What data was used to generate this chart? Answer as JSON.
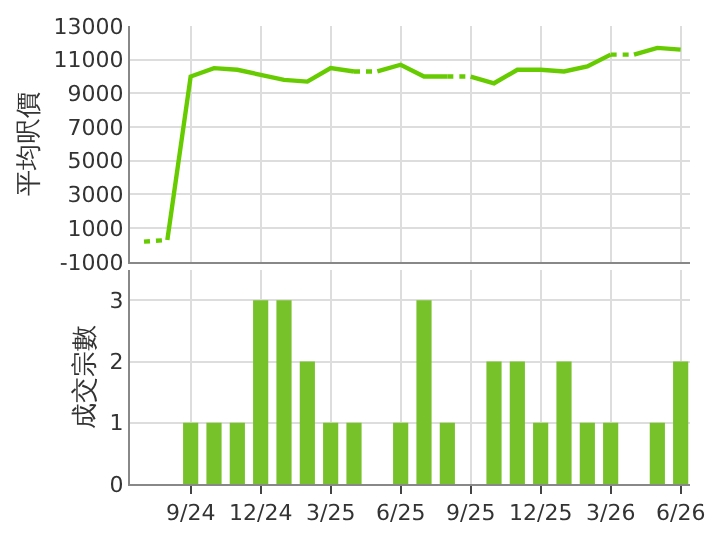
{
  "chart_data": [
    {
      "type": "line",
      "ylabel": "平均呎價",
      "categories": [
        null,
        null,
        null,
        null,
        null,
        null,
        null,
        null,
        null,
        null,
        null,
        null,
        null,
        null,
        null,
        null,
        null,
        null,
        null,
        null,
        null,
        null,
        null,
        null
      ],
      "series": [
        {
          "color": "#66cc00",
          "line_style": "solid",
          "values": [
            null,
            300,
            10000,
            10500,
            10400,
            10100,
            9800,
            9700,
            10500,
            10300,
            null,
            null,
            null,
            null,
            null,
            null,
            null,
            null,
            null,
            null,
            null,
            null,
            null,
            null
          ]
        },
        {
          "color": "#66cc00",
          "line_style": "solid",
          "values": [
            null,
            null,
            null,
            null,
            null,
            null,
            null,
            null,
            null,
            null,
            10300,
            10700,
            10000,
            10000,
            null,
            null,
            null,
            null,
            null,
            null,
            null,
            null,
            null,
            null
          ]
        },
        {
          "color": "#66cc00",
          "line_style": "solid",
          "values": [
            null,
            null,
            null,
            null,
            null,
            null,
            null,
            null,
            null,
            null,
            null,
            null,
            null,
            null,
            10000,
            9600,
            10400,
            10400,
            10300,
            10600,
            11300,
            null,
            null,
            null
          ]
        },
        {
          "color": "#66cc00",
          "line_style": "solid",
          "values": [
            null,
            null,
            null,
            null,
            null,
            null,
            null,
            null,
            null,
            null,
            null,
            null,
            null,
            null,
            null,
            null,
            null,
            null,
            null,
            null,
            null,
            11300,
            11700,
            11600
          ]
        },
        {
          "color": "#66cc00",
          "line_style": "dotted",
          "values": [
            200,
            300,
            null,
            null,
            null,
            null,
            null,
            null,
            null,
            10300,
            10300,
            null,
            null,
            10000,
            10000,
            null,
            null,
            null,
            null,
            null,
            11300,
            11300,
            null,
            null
          ]
        }
      ],
      "ylim": [
        -1000,
        13000
      ],
      "yticks": [
        -1000,
        1000,
        3000,
        5000,
        7000,
        9000,
        11000,
        13000
      ],
      "grid": true,
      "tick_labels": "y",
      "marker": "none"
    },
    {
      "type": "bar",
      "ylabel": "成交宗數",
      "categories": [
        null,
        null,
        "9/24",
        null,
        null,
        "12/24",
        null,
        null,
        "3/25",
        null,
        null,
        "6/25",
        null,
        null,
        "9/25",
        null,
        null,
        "12/25",
        null,
        null,
        "3/26",
        null,
        null,
        "6/26"
      ],
      "values": [
        0,
        0,
        1,
        1,
        1,
        3,
        3,
        2,
        1,
        1,
        0,
        1,
        3,
        1,
        0,
        2,
        2,
        1,
        2,
        1,
        1,
        0,
        1,
        2
      ],
      "color": "#77c12b",
      "ylim": [
        0,
        3.5
      ],
      "yticks": [
        0,
        1,
        2,
        3
      ],
      "grid": true
    }
  ]
}
